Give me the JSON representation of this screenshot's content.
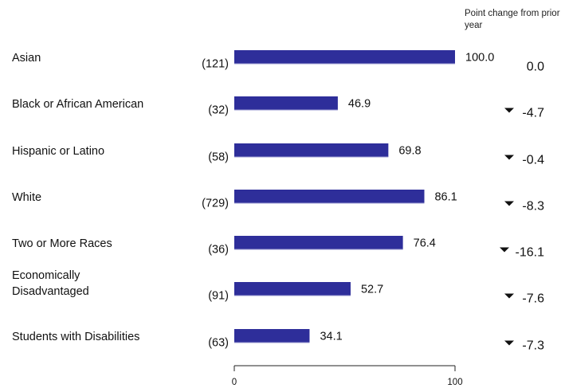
{
  "change_header": "Point change from prior year",
  "chart_data": {
    "type": "bar",
    "orientation": "horizontal",
    "categories": [
      "Asian",
      "Black or African American",
      "Hispanic or Latino",
      "White",
      "Two or More Races",
      "Economically Disadvantaged",
      "Students with Disabilities"
    ],
    "counts": [
      "(121)",
      "(32)",
      "(58)",
      "(729)",
      "(36)",
      "(91)",
      "(63)"
    ],
    "values": [
      100.0,
      46.9,
      69.8,
      86.1,
      76.4,
      52.7,
      34.1
    ],
    "value_labels": [
      "100.0",
      "46.9",
      "69.8",
      "86.1",
      "76.4",
      "52.7",
      "34.1"
    ],
    "changes": [
      "0.0",
      "-4.7",
      "-0.4",
      "-8.3",
      "-16.1",
      "-7.6",
      "-7.3"
    ],
    "change_direction": [
      "none",
      "down",
      "down",
      "down",
      "down",
      "down",
      "down"
    ],
    "xlim": [
      0,
      100
    ],
    "ticks": [
      "0",
      "100"
    ],
    "bar_color": "#2e2e9a",
    "grid": false,
    "legend": "none"
  }
}
